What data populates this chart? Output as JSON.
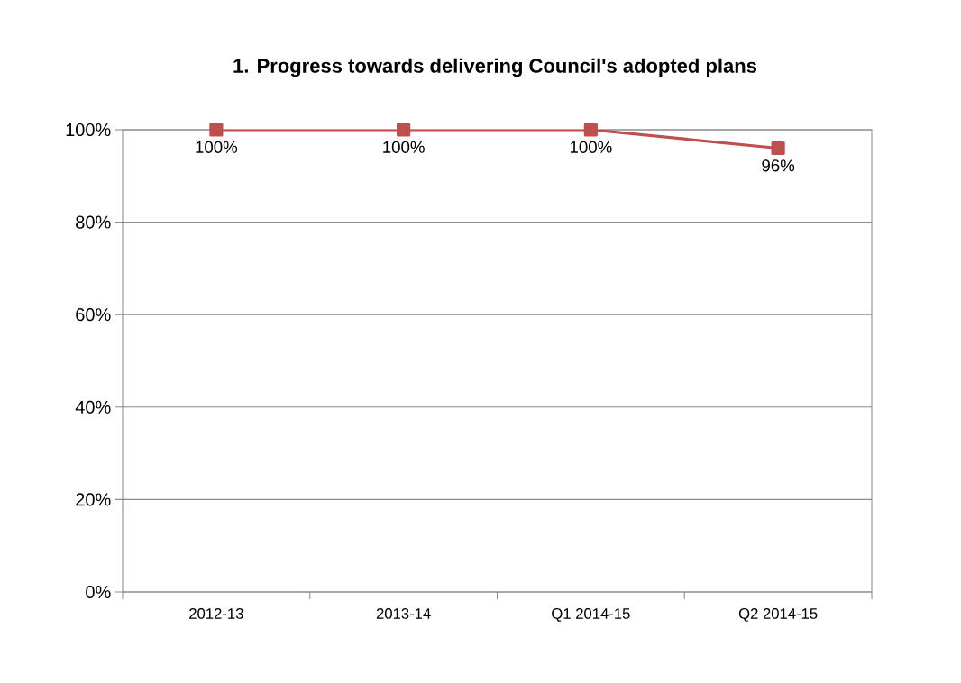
{
  "chart_data": {
    "type": "line",
    "title": "1. Progress towards delivering Council's adopted plans",
    "categories": [
      "2012-13",
      "2013-14",
      "Q1 2014-15",
      "Q2 2014-15"
    ],
    "series": [
      {
        "color": "#c0504d",
        "values": [
          100,
          100,
          100,
          96
        ],
        "value_labels": [
          "100%",
          "100%",
          "100%",
          "96%"
        ]
      }
    ],
    "ylim": [
      0,
      100
    ],
    "yticks": [
      {
        "value": 0,
        "label": "0%"
      },
      {
        "value": 20,
        "label": "20%"
      },
      {
        "value": 40,
        "label": "40%"
      },
      {
        "value": 60,
        "label": "60%"
      },
      {
        "value": 80,
        "label": "80%"
      },
      {
        "value": 100,
        "label": "100%"
      }
    ],
    "grid": "y",
    "marker": "square",
    "line_style": "solid"
  }
}
